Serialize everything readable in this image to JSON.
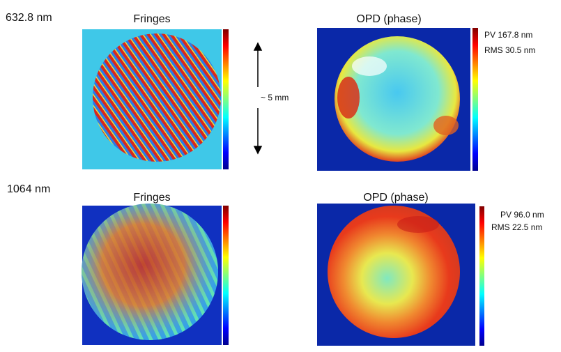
{
  "rows": [
    {
      "wavelength": "632.8 nm",
      "fringes": {
        "title": "Fringes"
      },
      "opd": {
        "title": "OPD (phase)",
        "pv": "PV 167.8 nm",
        "rms": "RMS 30.5 nm"
      }
    },
    {
      "wavelength": "1064 nm",
      "fringes": {
        "title": "Fringes"
      },
      "opd": {
        "title": "OPD (phase)",
        "pv": "PV 96.0 nm",
        "rms": "RMS 22.5 nm"
      }
    }
  ],
  "scale_label": "~ 5 mm"
}
